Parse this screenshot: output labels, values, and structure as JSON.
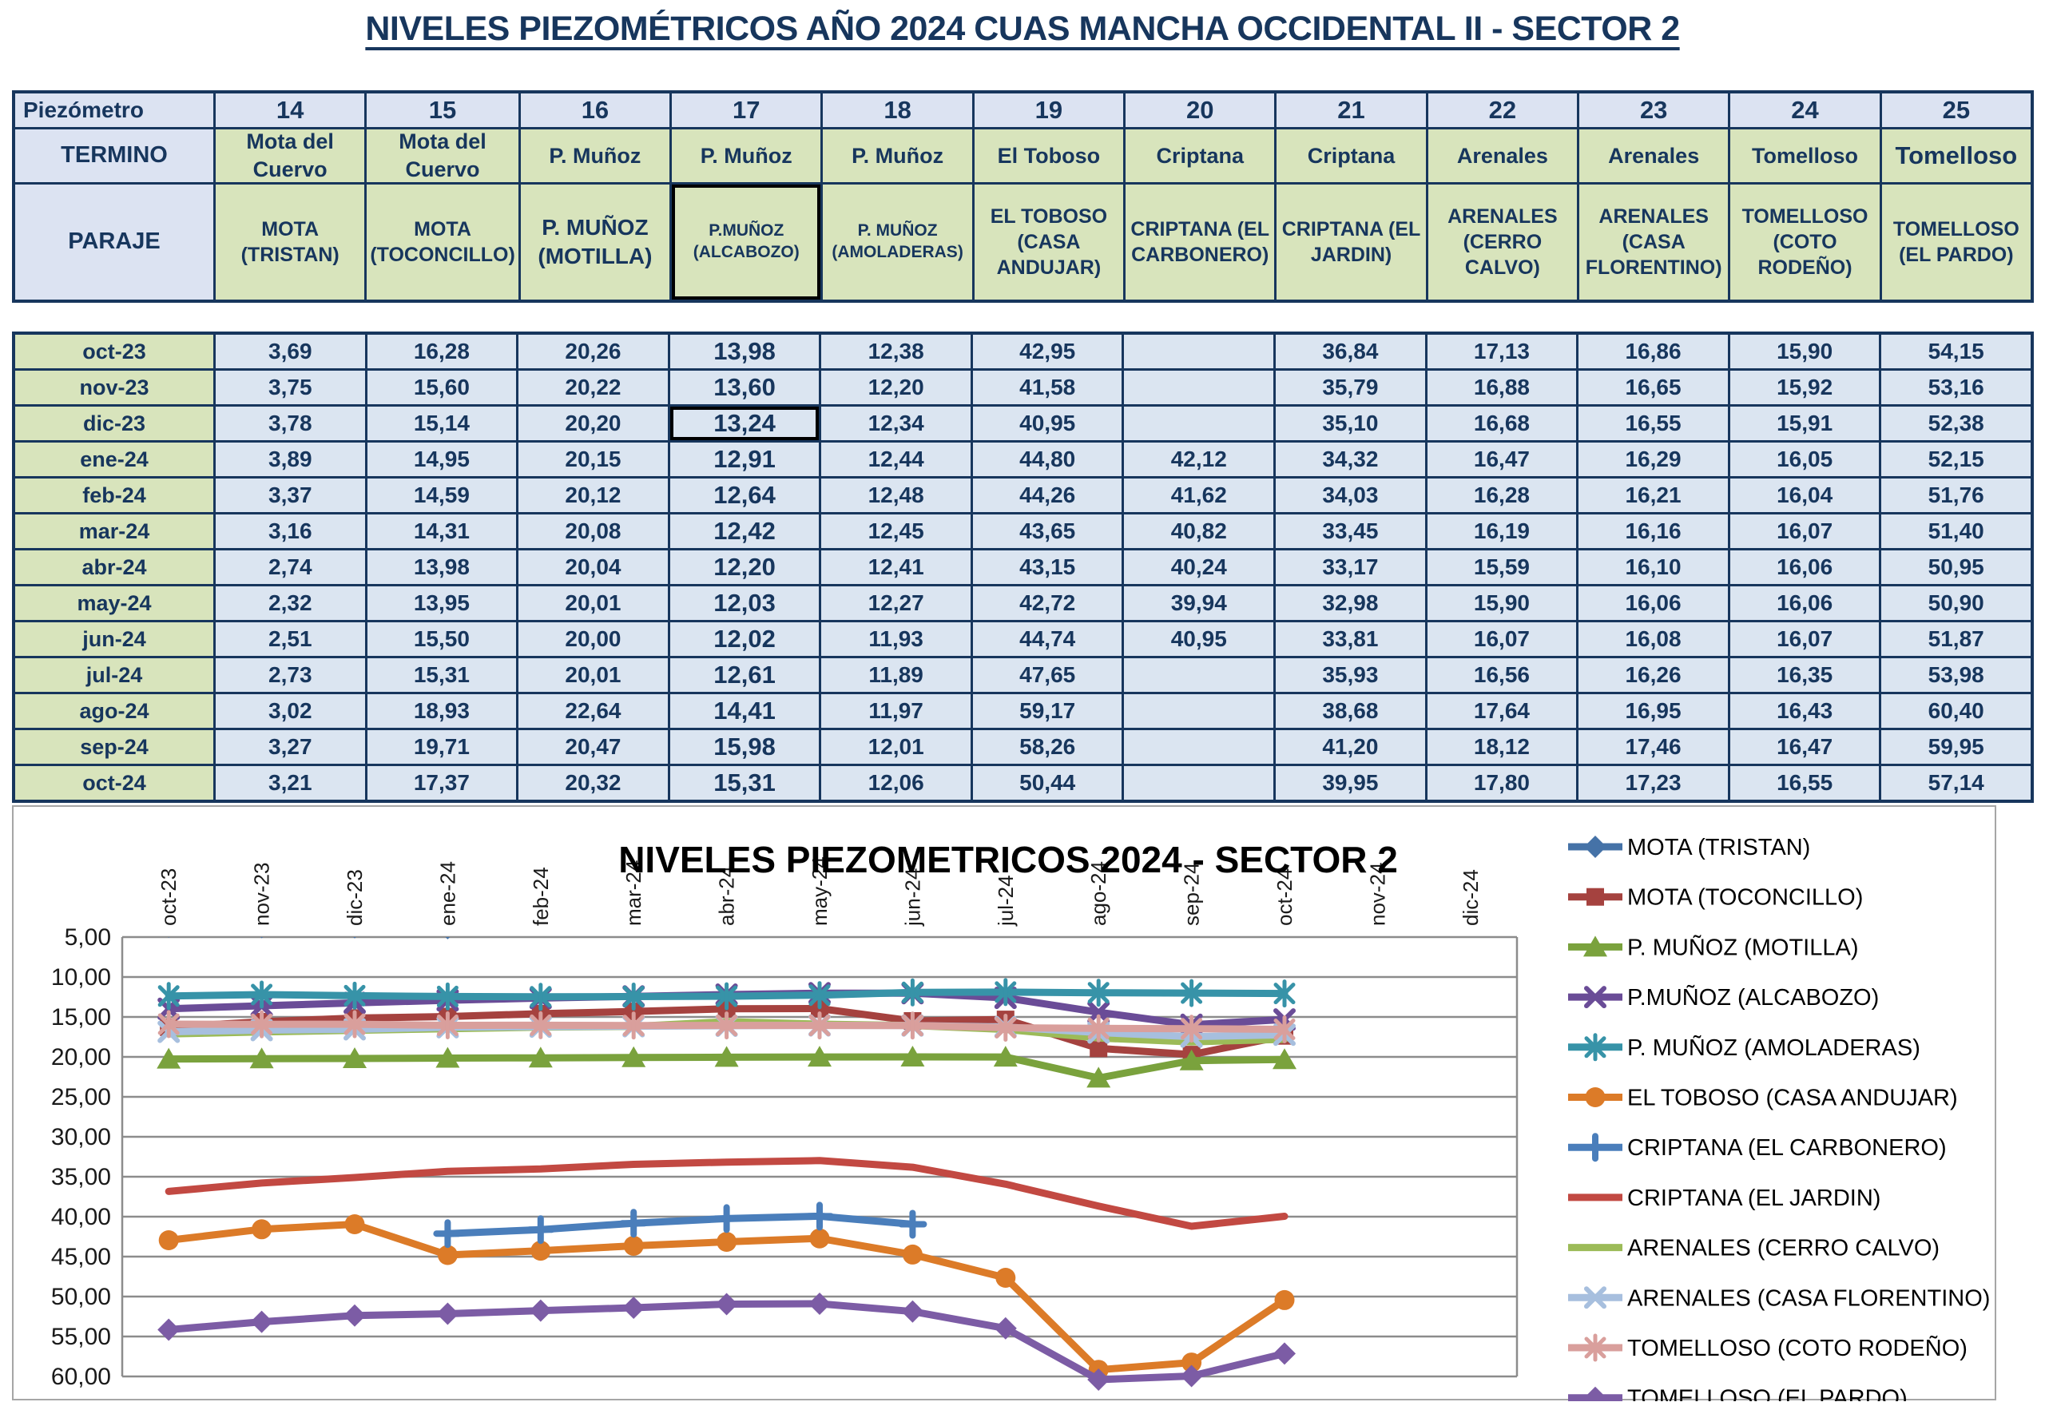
{
  "page_title": "NIVELES PIEZOMÉTRICOS AÑO 2024 CUAS MANCHA OCCIDENTAL II - SECTOR 2",
  "colors": {
    "navy_text": "#17365D",
    "table_border": "#17365D",
    "header_cell_blue": "#DCE3F2",
    "data_cell_blue": "#DBE5F1",
    "cell_green": "#D8E4BC",
    "selection_border": "#000000",
    "chart_grid": "#8C8C8C",
    "chart_border": "#A6A6A6",
    "chart_text": "#1A1A1A"
  },
  "header_table": {
    "row1_label": "Piezómetro",
    "row2_label": "TERMINO",
    "row3_label": "PARAJE",
    "piezometros": [
      "14",
      "15",
      "16",
      "17",
      "18",
      "19",
      "20",
      "21",
      "22",
      "23",
      "24",
      "25"
    ],
    "terminos": [
      "Mota del Cuervo",
      "Mota del Cuervo",
      "P. Muñoz",
      "P. Muñoz",
      "P. Muñoz",
      "El Toboso",
      "Criptana",
      "Criptana",
      "Arenales",
      "Arenales",
      "Tomelloso",
      "Tomelloso"
    ],
    "parajes": [
      "MOTA (TRISTAN)",
      "MOTA (TOCONCILLO)",
      "P. MUÑOZ (MOTILLA)",
      "P.MUÑOZ (ALCABOZO)",
      "P. MUÑOZ (AMOLADERAS)",
      "EL TOBOSO (CASA ANDUJAR)",
      "CRIPTANA (EL CARBONERO)",
      "CRIPTANA (EL JARDIN)",
      "ARENALES (CERRO CALVO)",
      "ARENALES (CASA FLORENTINO)",
      "TOMELLOSO (COTO RODEÑO)",
      "TOMELLOSO (EL PARDO)"
    ]
  },
  "data_table": {
    "months": [
      "oct-23",
      "nov-23",
      "dic-23",
      "ene-24",
      "feb-24",
      "mar-24",
      "abr-24",
      "may-24",
      "jun-24",
      "jul-24",
      "ago-24",
      "sep-24",
      "oct-24"
    ],
    "decimal_format": "comma",
    "selection": {
      "paraje_column": "17",
      "cell": {
        "month": "dic-23",
        "column": "17"
      }
    }
  },
  "chart_data": {
    "type": "line",
    "title": "NIVELES PIEZOMETRICOS 2024 - SECTOR 2",
    "x": [
      "oct-23",
      "nov-23",
      "dic-23",
      "ene-24",
      "feb-24",
      "mar-24",
      "abr-24",
      "may-24",
      "jun-24",
      "jul-24",
      "ago-24",
      "sep-24",
      "oct-24",
      "nov-24",
      "dic-24"
    ],
    "y_axis": {
      "min": 5,
      "max": 60,
      "step": 5,
      "inverted": true,
      "tick_format": "0,00"
    },
    "grid": true,
    "legend_position": "right",
    "series": [
      {
        "name": "MOTA (TRISTAN)",
        "color": "#4572A7",
        "marker": "diamond",
        "values": [
          3.69,
          3.75,
          3.78,
          3.89,
          3.37,
          3.16,
          2.74,
          2.32,
          2.51,
          2.73,
          3.02,
          3.27,
          3.21,
          null,
          null
        ]
      },
      {
        "name": "MOTA (TOCONCILLO)",
        "color": "#A5423F",
        "marker": "square",
        "values": [
          16.28,
          15.6,
          15.14,
          14.95,
          14.59,
          14.31,
          13.98,
          13.95,
          15.5,
          15.31,
          18.93,
          19.71,
          17.37,
          null,
          null
        ]
      },
      {
        "name": "P. MUÑOZ (MOTILLA)",
        "color": "#7AA23D",
        "marker": "triangle",
        "values": [
          20.26,
          20.22,
          20.2,
          20.15,
          20.12,
          20.08,
          20.04,
          20.01,
          20.0,
          20.01,
          22.64,
          20.47,
          20.32,
          null,
          null
        ]
      },
      {
        "name": "P.MUÑOZ (ALCABOZO)",
        "color": "#6A4C97",
        "marker": "x",
        "values": [
          13.98,
          13.6,
          13.24,
          12.91,
          12.64,
          12.42,
          12.2,
          12.03,
          12.02,
          12.61,
          14.41,
          15.98,
          15.31,
          null,
          null
        ]
      },
      {
        "name": "P. MUÑOZ (AMOLADERAS)",
        "color": "#3793A8",
        "marker": "asterisk",
        "values": [
          12.38,
          12.2,
          12.34,
          12.44,
          12.48,
          12.45,
          12.41,
          12.27,
          11.93,
          11.89,
          11.97,
          12.01,
          12.06,
          null,
          null
        ]
      },
      {
        "name": "EL TOBOSO (CASA ANDUJAR)",
        "color": "#DC7B28",
        "marker": "circle",
        "values": [
          42.95,
          41.58,
          40.95,
          44.8,
          44.26,
          43.65,
          43.15,
          42.72,
          44.74,
          47.65,
          59.17,
          58.26,
          50.44,
          null,
          null
        ]
      },
      {
        "name": "CRIPTANA (EL CARBONERO)",
        "color": "#4A7EBB",
        "marker": "plus",
        "values": [
          null,
          null,
          null,
          42.12,
          41.62,
          40.82,
          40.24,
          39.94,
          40.95,
          null,
          null,
          null,
          null,
          null,
          null
        ]
      },
      {
        "name": "CRIPTANA (EL JARDIN)",
        "color": "#C24942",
        "marker": "none",
        "values": [
          36.84,
          35.79,
          35.1,
          34.32,
          34.03,
          33.45,
          33.17,
          32.98,
          33.81,
          35.93,
          38.68,
          41.2,
          39.95,
          null,
          null
        ]
      },
      {
        "name": "ARENALES (CERRO CALVO)",
        "color": "#9CBB58",
        "marker": "none",
        "values": [
          17.13,
          16.88,
          16.68,
          16.47,
          16.28,
          16.19,
          15.59,
          15.9,
          16.07,
          16.56,
          17.64,
          18.12,
          17.8,
          null,
          null
        ]
      },
      {
        "name": "ARENALES (CASA FLORENTINO)",
        "color": "#A7BFDE",
        "marker": "x",
        "values": [
          16.86,
          16.65,
          16.55,
          16.29,
          16.21,
          16.16,
          16.1,
          16.06,
          16.08,
          16.26,
          16.95,
          17.46,
          17.23,
          null,
          null
        ]
      },
      {
        "name": "TOMELLOSO (COTO RODEÑO)",
        "color": "#D99F9C",
        "marker": "asterisk",
        "values": [
          15.9,
          15.92,
          15.91,
          16.05,
          16.04,
          16.07,
          16.06,
          16.06,
          16.07,
          16.35,
          16.43,
          16.47,
          16.55,
          null,
          null
        ]
      },
      {
        "name": "TOMELLOSO (EL PARDO)",
        "color": "#7C5CA5",
        "marker": "diamond",
        "values": [
          54.15,
          53.16,
          52.38,
          52.15,
          51.76,
          51.4,
          50.95,
          50.9,
          51.87,
          53.98,
          60.4,
          59.95,
          57.14,
          null,
          null
        ]
      }
    ]
  }
}
